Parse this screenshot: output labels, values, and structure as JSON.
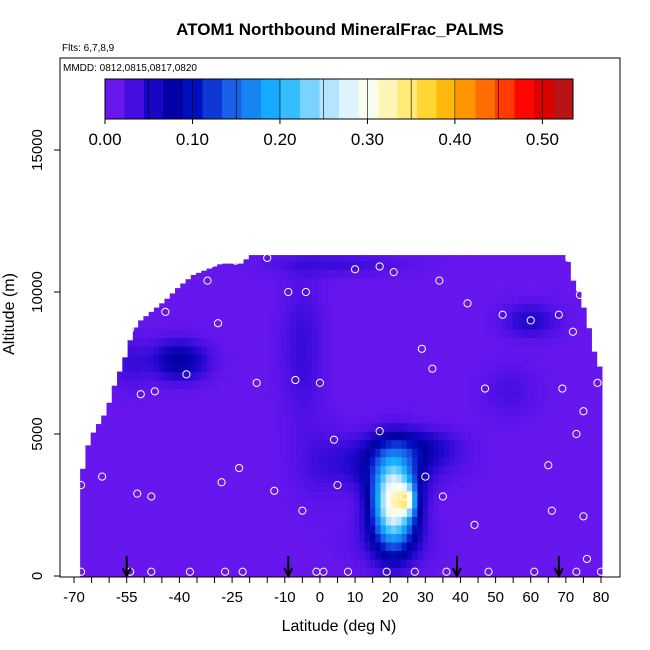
{
  "chart_data": {
    "type": "heatmap",
    "title": "ATOM1 Northbound MineralFrac_PALMS",
    "subtitle_flights": "Flts: 6,7,8,9",
    "subtitle_dates": "MMDD: 0812,0815,0817,0820",
    "xlabel": "Latitude (deg N)",
    "ylabel": "Altitude (m)",
    "xlim": [
      -70,
      80
    ],
    "ylim": [
      0,
      17500
    ],
    "x_ticks": [
      -70,
      -55,
      -40,
      -25,
      -10,
      0,
      10,
      20,
      30,
      40,
      50,
      60,
      70,
      80
    ],
    "y_ticks": [
      0,
      5000,
      10000,
      15000
    ],
    "colorbar": {
      "range": [
        0,
        0.535
      ],
      "labels": [
        "0.00",
        "0.10",
        "0.20",
        "0.30",
        "0.40",
        "0.50"
      ],
      "label_values": [
        0,
        0.1,
        0.2,
        0.3,
        0.4,
        0.5
      ],
      "colors": [
        "#7a1cf2",
        "#5010e6",
        "#1a06c8",
        "#0000a0",
        "#0014c8",
        "#1850e0",
        "#1a78f0",
        "#10a8ff",
        "#38c0ff",
        "#90d8ff",
        "#d0ecff",
        "#f6ffff",
        "#fff6c0",
        "#ffe870",
        "#ffd020",
        "#ffa800",
        "#ff7a00",
        "#ff4000",
        "#ff0000",
        "#d00000",
        "#a82020"
      ]
    },
    "flight_profile_arrows_lat": [
      -55,
      -9,
      39,
      68
    ],
    "samples": [
      [
        -68,
        3200
      ],
      [
        -68,
        150
      ],
      [
        -62,
        3500
      ],
      [
        -54,
        8700
      ],
      [
        -54,
        150
      ],
      [
        -52,
        2900
      ],
      [
        -51,
        6400
      ],
      [
        -48,
        2800
      ],
      [
        -48,
        150
      ],
      [
        -47,
        6500
      ],
      [
        -44,
        9300
      ],
      [
        -38,
        7100
      ],
      [
        -37,
        150
      ],
      [
        -32,
        10400
      ],
      [
        -31,
        11000
      ],
      [
        -29,
        8900
      ],
      [
        -28,
        3300
      ],
      [
        -27,
        150
      ],
      [
        -24,
        11100
      ],
      [
        -23,
        3800
      ],
      [
        -22,
        150
      ],
      [
        -18,
        6800
      ],
      [
        -15,
        11200
      ],
      [
        -13,
        3000
      ],
      [
        -9,
        10000
      ],
      [
        -7,
        6900
      ],
      [
        -5,
        2300
      ],
      [
        -4,
        10000
      ],
      [
        -1,
        150
      ],
      [
        0,
        6800
      ],
      [
        1,
        150
      ],
      [
        4,
        4800
      ],
      [
        5,
        3200
      ],
      [
        8,
        150
      ],
      [
        10,
        10800
      ],
      [
        17,
        10900
      ],
      [
        17,
        5100
      ],
      [
        19,
        150
      ],
      [
        21,
        10700
      ],
      [
        24,
        2800
      ],
      [
        27,
        150
      ],
      [
        29,
        8000
      ],
      [
        30,
        3500
      ],
      [
        32,
        7300
      ],
      [
        34,
        10400
      ],
      [
        35,
        2800
      ],
      [
        36,
        150
      ],
      [
        42,
        9600
      ],
      [
        44,
        1800
      ],
      [
        47,
        6600
      ],
      [
        48,
        150
      ],
      [
        52,
        9200
      ],
      [
        60,
        9000
      ],
      [
        61,
        150
      ],
      [
        65,
        3900
      ],
      [
        66,
        2300
      ],
      [
        68,
        9200
      ],
      [
        69,
        6600
      ],
      [
        71,
        11200
      ],
      [
        72,
        8600
      ],
      [
        73,
        150
      ],
      [
        73,
        5000
      ],
      [
        74,
        9900
      ],
      [
        75,
        5800
      ],
      [
        75,
        2100
      ],
      [
        76,
        600
      ],
      [
        79,
        6800
      ],
      [
        80,
        150
      ]
    ]
  }
}
